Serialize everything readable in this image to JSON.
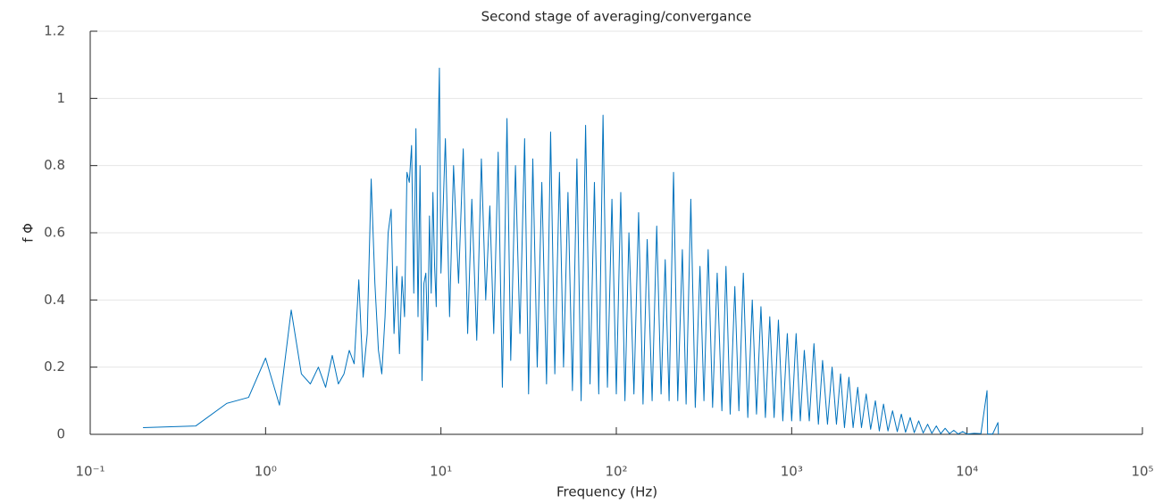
{
  "chart_data": {
    "type": "line",
    "title": "Second stage of averaging/convergance",
    "xlabel": "Frequency (Hz)",
    "ylabel": "f Φ",
    "xscale": "log",
    "grid": true,
    "color": "#0072bd",
    "xlim": [
      0.1,
      100000
    ],
    "ylim": [
      0,
      1.2
    ],
    "xticks": [
      {
        "value": 0.1,
        "label": "10⁻¹"
      },
      {
        "value": 1,
        "label": "10⁰"
      },
      {
        "value": 10,
        "label": "10¹"
      },
      {
        "value": 100,
        "label": "10²"
      },
      {
        "value": 1000,
        "label": "10³"
      },
      {
        "value": 10000,
        "label": "10⁴"
      },
      {
        "value": 100000,
        "label": "10⁵"
      }
    ],
    "yticks": [
      0,
      0.2,
      0.4,
      0.6,
      0.8,
      1,
      1.2
    ],
    "x": [
      0.2,
      0.4,
      0.6,
      0.8,
      1.0,
      1.2,
      1.4,
      1.6,
      1.8,
      2.0,
      2.2,
      2.4,
      2.6,
      2.8,
      3.0,
      3.2,
      3.4,
      3.6,
      3.8,
      4.0,
      4.2,
      4.4,
      4.6,
      4.8,
      5.0,
      5.2,
      5.4,
      5.6,
      5.8,
      6.0,
      6.2,
      6.4,
      6.6,
      6.8,
      7.0,
      7.2,
      7.4,
      7.6,
      7.8,
      8.0,
      8.2,
      8.4,
      8.6,
      8.8,
      9.0,
      9.2,
      9.4,
      9.6,
      9.8,
      10,
      10.6,
      11.2,
      11.8,
      12.6,
      13.4,
      14.2,
      15,
      16,
      17,
      18,
      19,
      20,
      21.2,
      22.4,
      23.8,
      25,
      26.6,
      28.2,
      30,
      31.6,
      33.4,
      35.4,
      37.6,
      40,
      42.2,
      44.6,
      47.4,
      50,
      53,
      56.2,
      59.6,
      63,
      66.8,
      70.8,
      75,
      79.4,
      84,
      89,
      94.4,
      100,
      106,
      112,
      118,
      126,
      134,
      142,
      150,
      160,
      170,
      180,
      190,
      200,
      212,
      224,
      238,
      250,
      266,
      282,
      300,
      316,
      334,
      354,
      376,
      400,
      422,
      446,
      474,
      500,
      530,
      562,
      596,
      630,
      668,
      708,
      750,
      794,
      840,
      890,
      944,
      1000,
      1060,
      1120,
      1180,
      1260,
      1340,
      1420,
      1500,
      1600,
      1700,
      1800,
      1900,
      2000,
      2120,
      2240,
      2380,
      2500,
      2660,
      2820,
      3000,
      3160,
      3340,
      3540,
      3760,
      4000,
      4220,
      4460,
      4740,
      5000,
      5300,
      5620,
      5960,
      6300,
      6680,
      7080,
      7500,
      7940,
      8400,
      8900,
      9440,
      10000,
      11000,
      12000,
      13000,
      13100,
      14000,
      15000,
      15100
    ],
    "values": [
      0.02,
      0.025,
      0.092,
      0.11,
      0.227,
      0.087,
      0.37,
      0.18,
      0.15,
      0.2,
      0.14,
      0.235,
      0.15,
      0.18,
      0.25,
      0.21,
      0.46,
      0.17,
      0.3,
      0.76,
      0.45,
      0.25,
      0.18,
      0.35,
      0.6,
      0.67,
      0.3,
      0.5,
      0.24,
      0.47,
      0.35,
      0.78,
      0.75,
      0.86,
      0.42,
      0.91,
      0.35,
      0.8,
      0.16,
      0.45,
      0.48,
      0.28,
      0.65,
      0.42,
      0.72,
      0.5,
      0.38,
      0.85,
      1.09,
      0.48,
      0.88,
      0.35,
      0.8,
      0.45,
      0.85,
      0.3,
      0.7,
      0.28,
      0.82,
      0.4,
      0.68,
      0.3,
      0.84,
      0.14,
      0.94,
      0.22,
      0.8,
      0.3,
      0.88,
      0.12,
      0.82,
      0.2,
      0.75,
      0.15,
      0.9,
      0.18,
      0.78,
      0.2,
      0.72,
      0.13,
      0.82,
      0.1,
      0.92,
      0.15,
      0.75,
      0.12,
      0.95,
      0.14,
      0.7,
      0.12,
      0.72,
      0.1,
      0.6,
      0.12,
      0.66,
      0.09,
      0.58,
      0.1,
      0.62,
      0.12,
      0.52,
      0.1,
      0.78,
      0.1,
      0.55,
      0.09,
      0.7,
      0.08,
      0.5,
      0.1,
      0.55,
      0.08,
      0.48,
      0.07,
      0.5,
      0.06,
      0.44,
      0.07,
      0.48,
      0.05,
      0.4,
      0.06,
      0.38,
      0.05,
      0.35,
      0.05,
      0.34,
      0.04,
      0.3,
      0.04,
      0.3,
      0.04,
      0.25,
      0.04,
      0.27,
      0.03,
      0.22,
      0.03,
      0.2,
      0.03,
      0.18,
      0.02,
      0.17,
      0.02,
      0.14,
      0.02,
      0.12,
      0.015,
      0.1,
      0.01,
      0.09,
      0.01,
      0.07,
      0.008,
      0.06,
      0.006,
      0.05,
      0.005,
      0.04,
      0.004,
      0.03,
      0.003,
      0.025,
      0.002,
      0.018,
      0.002,
      0.012,
      0.001,
      0.008,
      0.001,
      0.003,
      0.002,
      0.13,
      0.001,
      0.001,
      0.035,
      0
    ]
  }
}
